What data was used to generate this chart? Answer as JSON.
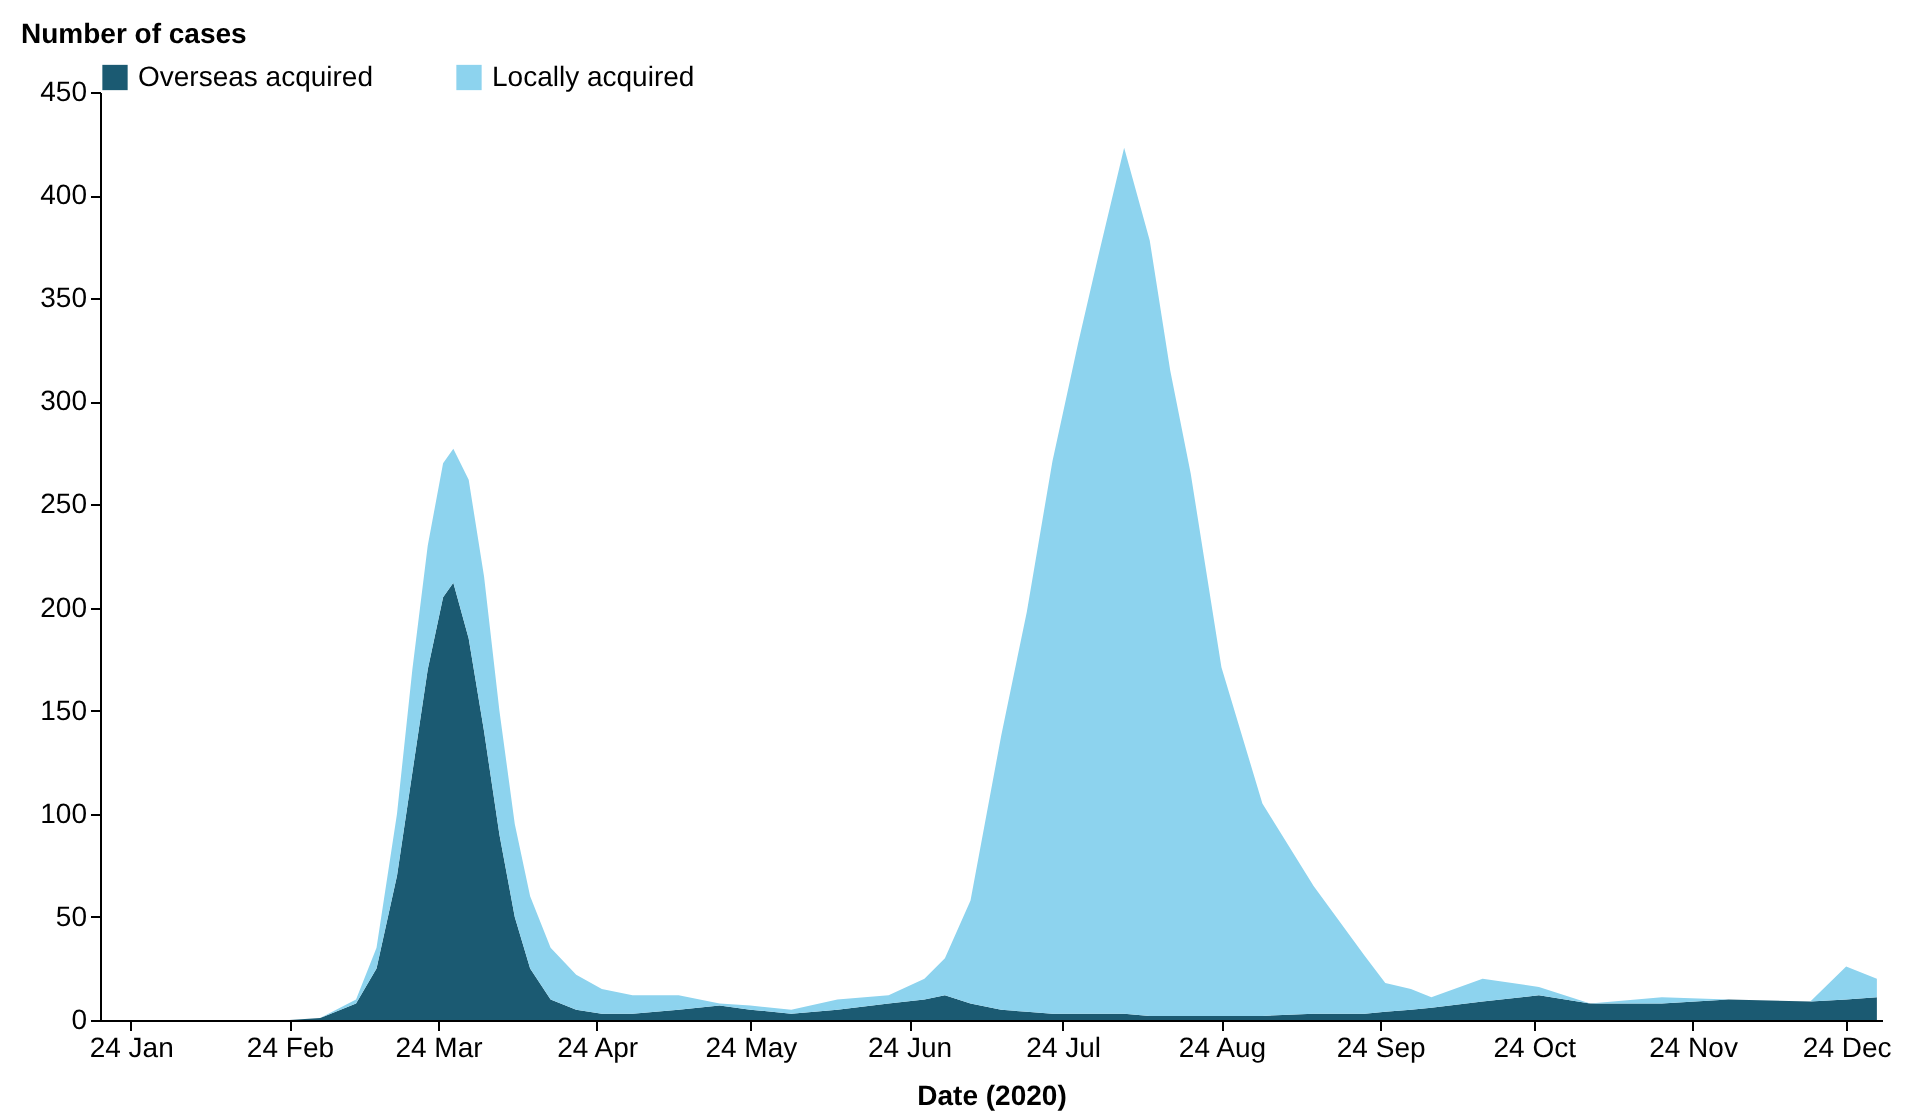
{
  "chart_data": {
    "type": "area",
    "stacked": true,
    "xlabel": "Date (2020)",
    "ylabel": "Number of cases",
    "x": [
      "2020-01-22",
      "2020-02-24",
      "2020-03-01",
      "2020-03-08",
      "2020-03-12",
      "2020-03-16",
      "2020-03-19",
      "2020-03-22",
      "2020-03-25",
      "2020-03-27",
      "2020-03-30",
      "2020-04-02",
      "2020-04-05",
      "2020-04-08",
      "2020-04-11",
      "2020-04-15",
      "2020-04-20",
      "2020-04-25",
      "2020-05-01",
      "2020-05-10",
      "2020-05-18",
      "2020-05-24",
      "2020-06-01",
      "2020-06-10",
      "2020-06-20",
      "2020-06-27",
      "2020-07-01",
      "2020-07-06",
      "2020-07-12",
      "2020-07-17",
      "2020-07-22",
      "2020-07-27",
      "2020-07-31",
      "2020-08-05",
      "2020-08-10",
      "2020-08-14",
      "2020-08-18",
      "2020-08-24",
      "2020-09-01",
      "2020-09-11",
      "2020-09-21",
      "2020-09-25",
      "2020-09-30",
      "2020-10-04",
      "2020-10-14",
      "2020-10-25",
      "2020-11-04",
      "2020-11-18",
      "2020-12-01",
      "2020-12-17",
      "2020-12-24",
      "2020-12-30"
    ],
    "series": [
      {
        "name": "Overseas acquired",
        "color": "#1b5a72",
        "values": [
          0,
          0,
          1,
          8,
          25,
          70,
          120,
          170,
          205,
          212,
          185,
          140,
          90,
          50,
          25,
          10,
          5,
          3,
          3,
          5,
          7,
          5,
          3,
          5,
          8,
          10,
          12,
          8,
          5,
          4,
          3,
          3,
          3,
          3,
          2,
          2,
          2,
          2,
          2,
          3,
          3,
          4,
          5,
          6,
          9,
          12,
          8,
          8,
          10,
          9,
          10,
          11
        ]
      },
      {
        "name": "Locally acquired",
        "color": "#8dd3ee",
        "values": [
          0,
          0,
          0,
          2,
          10,
          30,
          50,
          60,
          65,
          65,
          77,
          75,
          60,
          45,
          35,
          25,
          17,
          12,
          9,
          7,
          1,
          2,
          2,
          5,
          4,
          10,
          18,
          50,
          133,
          194,
          268,
          325,
          368,
          420,
          376,
          313,
          263,
          169,
          103,
          62,
          28,
          14,
          10,
          5,
          11,
          4,
          0,
          3,
          0,
          0,
          16,
          9
        ]
      }
    ],
    "xlim": [
      "2020-01-18",
      "2020-12-31"
    ],
    "xticks": [
      {
        "value": "2020-01-24",
        "label": "24 Jan"
      },
      {
        "value": "2020-02-24",
        "label": "24 Feb"
      },
      {
        "value": "2020-03-24",
        "label": "24 Mar"
      },
      {
        "value": "2020-04-24",
        "label": "24 Apr"
      },
      {
        "value": "2020-05-24",
        "label": "24 May"
      },
      {
        "value": "2020-06-24",
        "label": "24 Jun"
      },
      {
        "value": "2020-07-24",
        "label": "24 Jul"
      },
      {
        "value": "2020-08-24",
        "label": "24 Aug"
      },
      {
        "value": "2020-09-24",
        "label": "24 Sep"
      },
      {
        "value": "2020-10-24",
        "label": "24 Oct"
      },
      {
        "value": "2020-11-24",
        "label": "24 Nov"
      },
      {
        "value": "2020-12-24",
        "label": "24 Dec"
      }
    ],
    "ylim": [
      0,
      450
    ],
    "yticks": [
      0,
      50,
      100,
      150,
      200,
      250,
      300,
      350,
      400,
      450
    ],
    "grid": false,
    "legend": "top"
  }
}
